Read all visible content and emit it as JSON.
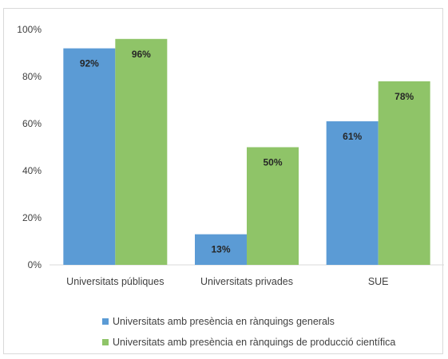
{
  "chart_data": {
    "type": "bar",
    "categories": [
      "Universitats públiques",
      "Universitats privades",
      "SUE"
    ],
    "series": [
      {
        "name": "Universitats amb presència en rànquings generals",
        "values": [
          92,
          13,
          61
        ],
        "labels": [
          "92%",
          "13%",
          "61%"
        ],
        "color": "#5b9bd5"
      },
      {
        "name": "Universitats amb presència en rànquings de producció científica",
        "values": [
          96,
          50,
          78
        ],
        "labels": [
          "96%",
          "50%",
          "78%"
        ],
        "color": "#8fc468"
      }
    ],
    "yticks": [
      "0%",
      "20%",
      "40%",
      "60%",
      "80%",
      "100%"
    ],
    "ylim": [
      0,
      100
    ],
    "grid": false,
    "legend_position": "bottom",
    "title": "",
    "xlabel": "",
    "ylabel": ""
  }
}
